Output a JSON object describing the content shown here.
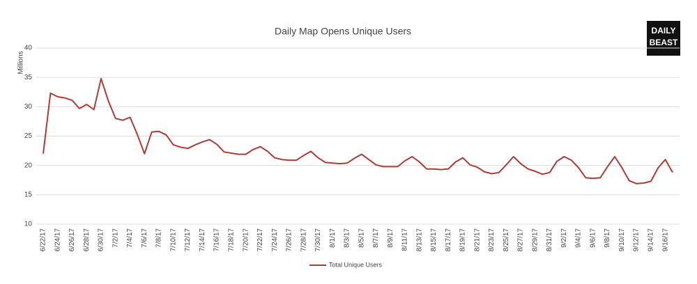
{
  "chart_data": {
    "type": "line",
    "title": "Daily Map Opens Unique Users",
    "ylabel": "Millions",
    "logo": [
      "DAILY",
      "BEAST"
    ],
    "categories": [
      "6/22/17",
      null,
      "6/24/17",
      null,
      "6/26/17",
      null,
      "6/28/17",
      null,
      "6/30/17",
      null,
      "7/2/17",
      null,
      "7/4/17",
      null,
      "7/6/17",
      null,
      "7/8/17",
      null,
      "7/10/17",
      null,
      "7/12/17",
      null,
      "7/14/17",
      null,
      "7/16/17",
      null,
      "7/18/17",
      null,
      "7/20/17",
      null,
      "7/22/17",
      null,
      "7/24/17",
      null,
      "7/26/17",
      null,
      "7/28/17",
      null,
      "7/30/17",
      null,
      "8/1/17",
      null,
      "8/3/17",
      null,
      "8/5/17",
      null,
      "8/7/17",
      null,
      "8/9/17",
      null,
      "8/11/17",
      null,
      "8/13/17",
      null,
      "8/15/17",
      null,
      "8/17/17",
      null,
      "8/19/17",
      null,
      "8/21/17",
      null,
      "8/23/17",
      null,
      "8/25/17",
      null,
      "8/27/17",
      null,
      "8/29/17",
      null,
      "8/31/17",
      null,
      "9/2/17",
      null,
      "9/4/17",
      null,
      "9/6/17",
      null,
      "9/8/17",
      null,
      "9/10/17",
      null,
      "9/12/17",
      null,
      "9/14/17",
      null,
      "9/16/17",
      null
    ],
    "series": [
      {
        "name": "Total Unique Users",
        "color": "#b03a35",
        "values": [
          22.0,
          32.3,
          31.7,
          31.5,
          31.1,
          29.7,
          30.4,
          29.5,
          34.8,
          31.0,
          28.0,
          27.7,
          28.2,
          25.3,
          22.0,
          25.7,
          25.8,
          25.2,
          23.5,
          23.1,
          22.9,
          23.5,
          24.0,
          24.4,
          23.6,
          22.3,
          22.1,
          21.9,
          21.9,
          22.7,
          23.2,
          22.4,
          21.3,
          21.0,
          20.9,
          20.9,
          21.7,
          22.4,
          21.3,
          20.5,
          20.4,
          20.3,
          20.4,
          21.2,
          21.9,
          21.0,
          20.1,
          19.8,
          19.8,
          19.8,
          20.8,
          21.5,
          20.6,
          19.4,
          19.4,
          19.3,
          19.4,
          20.6,
          21.3,
          20.1,
          19.7,
          18.9,
          18.6,
          18.8,
          20.1,
          21.5,
          20.3,
          19.4,
          19.0,
          18.5,
          18.8,
          20.7,
          21.5,
          20.9,
          19.6,
          17.9,
          17.8,
          17.9,
          19.8,
          21.5,
          19.6,
          17.4,
          16.9,
          17.0,
          17.3,
          19.6,
          21.0,
          18.8
        ]
      }
    ],
    "ylim": [
      10,
      40
    ],
    "yticks": [
      10,
      15,
      20,
      25,
      30,
      35,
      40
    ],
    "grid": true,
    "legend": "bottom"
  }
}
